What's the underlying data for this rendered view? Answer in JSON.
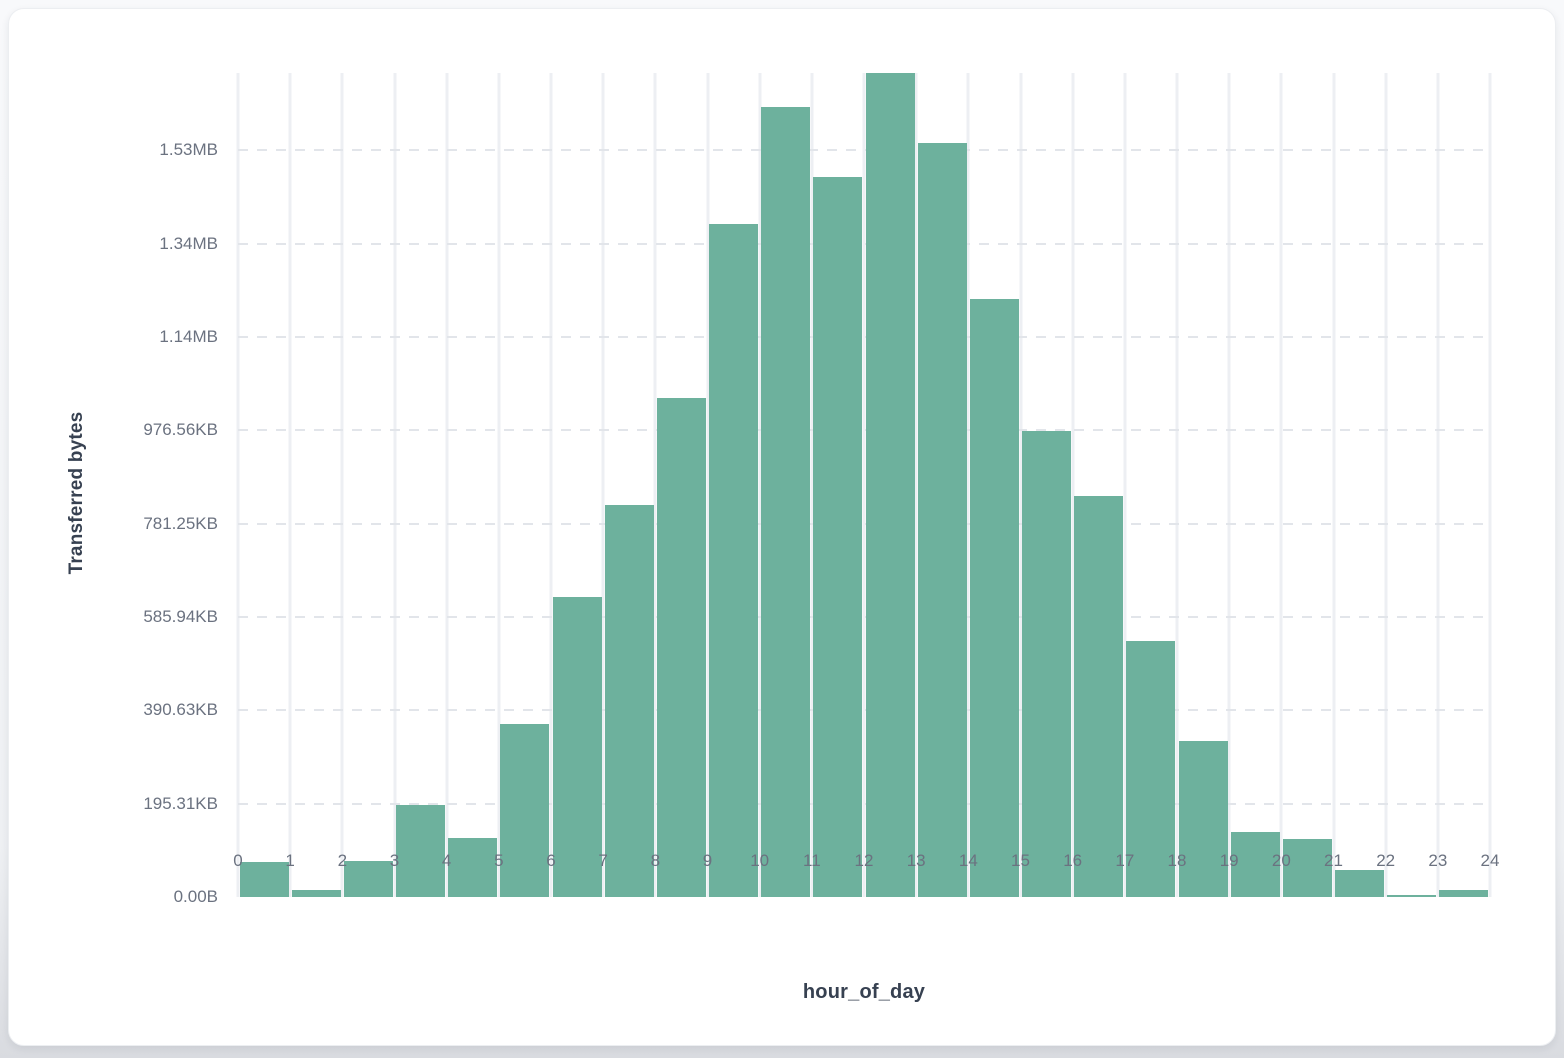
{
  "page": {
    "background": "#eef0f3",
    "card_background": "#ffffff"
  },
  "chart_data": {
    "type": "bar",
    "title": "",
    "xlabel": "hour_of_day",
    "ylabel": "Transferred bytes",
    "categories": [
      0,
      1,
      2,
      3,
      4,
      5,
      6,
      7,
      8,
      9,
      10,
      11,
      12,
      13,
      14,
      15,
      16,
      17,
      18,
      19,
      20,
      21,
      22,
      23
    ],
    "values": [
      74000,
      15000,
      78000,
      197000,
      126000,
      370000,
      643000,
      841000,
      1070000,
      1443000,
      1693000,
      1544000,
      1766000,
      1615000,
      1282000,
      998000,
      859000,
      548000,
      334000,
      140000,
      125000,
      58000,
      4300,
      14400
    ],
    "values_unit": "bytes",
    "x_tick_labels": [
      "0",
      "1",
      "2",
      "3",
      "4",
      "5",
      "6",
      "7",
      "8",
      "9",
      "10",
      "11",
      "12",
      "13",
      "14",
      "15",
      "16",
      "17",
      "18",
      "19",
      "20",
      "21",
      "22",
      "23",
      "24"
    ],
    "y_ticks": [
      {
        "value": 0,
        "label": "0.00B"
      },
      {
        "value": 200000,
        "label": "195.31KB"
      },
      {
        "value": 400000,
        "label": "390.63KB"
      },
      {
        "value": 600000,
        "label": "585.94KB"
      },
      {
        "value": 800000,
        "label": "781.25KB"
      },
      {
        "value": 1000000,
        "label": "976.56KB"
      },
      {
        "value": 1200000,
        "label": "1.14MB"
      },
      {
        "value": 1400000,
        "label": "1.34MB"
      },
      {
        "value": 1600000,
        "label": "1.53MB"
      }
    ],
    "xlim": [
      0,
      24
    ],
    "ylim": [
      0,
      1766000
    ],
    "grid": {
      "vertical": "solid",
      "horizontal": "dashed"
    },
    "legend": "none",
    "bar_color": "#6db19d",
    "grid_color_vertical": "#edeff3",
    "grid_color_horizontal": "#e2e5ea",
    "tick_label_color": "#6b7280",
    "axis_title_color": "#374151"
  }
}
